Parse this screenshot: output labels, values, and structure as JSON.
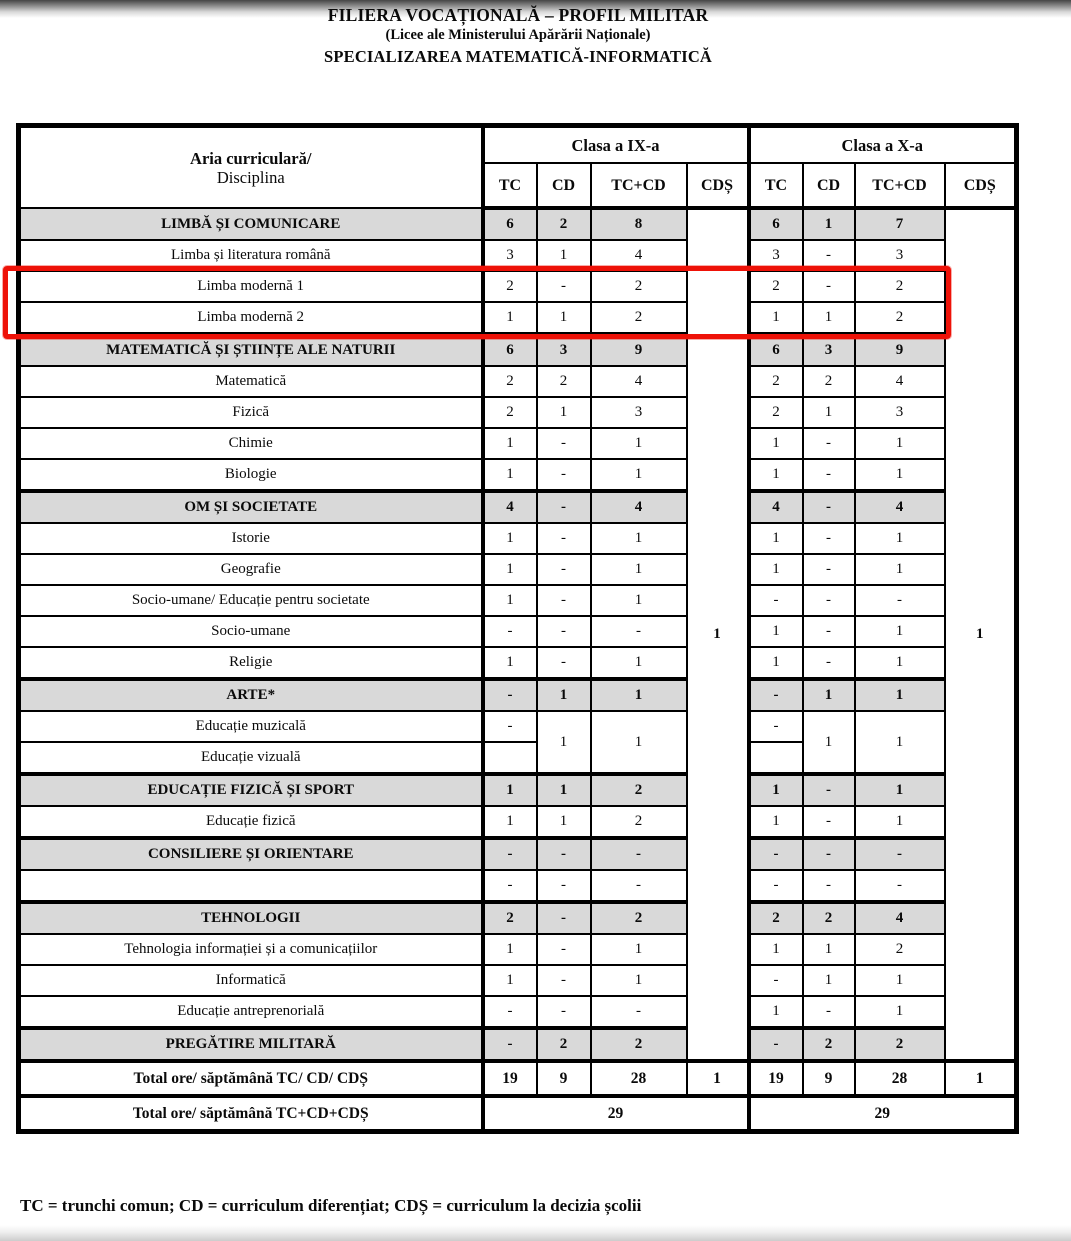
{
  "title": {
    "line1": "FILIERA VOCAȚIONALĂ – PROFIL MILITAR",
    "line2": "(Licee ale Ministerului Apărării Naționale)",
    "line3": "SPECIALIZAREA MATEMATICĂ-INFORMATICĂ"
  },
  "colors": {
    "section_bg": "#d9d9d9",
    "highlight": "#ee1208"
  },
  "table": {
    "corner": {
      "line1": "Aria curriculară/",
      "line2": "Disciplina"
    },
    "class_headers": [
      "Clasa a IX-a",
      "Clasa a X-a"
    ],
    "sub_headers": [
      "TC",
      "CD",
      "TC+CD",
      "CDȘ"
    ],
    "cds": {
      "ix": "1",
      "x": "1"
    },
    "rows": [
      {
        "type": "section",
        "label": "LIMBĂ ȘI COMUNICARE",
        "ix": [
          "6",
          "2",
          "8"
        ],
        "x": [
          "6",
          "1",
          "7"
        ]
      },
      {
        "type": "subject",
        "label": "Limba și literatura română",
        "ix": [
          "3",
          "1",
          "4"
        ],
        "x": [
          "3",
          "-",
          "3"
        ]
      },
      {
        "type": "subject",
        "key": "limba-moderna-1",
        "highlight": true,
        "label": "Limba modernă 1",
        "ix": [
          "2",
          "-",
          "2"
        ],
        "x": [
          "2",
          "-",
          "2"
        ]
      },
      {
        "type": "subject",
        "key": "limba-moderna-2",
        "highlight": true,
        "label": "Limba modernă 2",
        "ix": [
          "1",
          "1",
          "2"
        ],
        "x": [
          "1",
          "1",
          "2"
        ]
      },
      {
        "type": "section",
        "label": "MATEMATICĂ ȘI ȘTIINȚE ALE NATURII",
        "ix": [
          "6",
          "3",
          "9"
        ],
        "x": [
          "6",
          "3",
          "9"
        ]
      },
      {
        "type": "subject",
        "label": "Matematică",
        "ix": [
          "2",
          "2",
          "4"
        ],
        "x": [
          "2",
          "2",
          "4"
        ]
      },
      {
        "type": "subject",
        "label": "Fizică",
        "ix": [
          "2",
          "1",
          "3"
        ],
        "x": [
          "2",
          "1",
          "3"
        ]
      },
      {
        "type": "subject",
        "label": "Chimie",
        "ix": [
          "1",
          "-",
          "1"
        ],
        "x": [
          "1",
          "-",
          "1"
        ]
      },
      {
        "type": "subject",
        "label": "Biologie",
        "ix": [
          "1",
          "-",
          "1"
        ],
        "x": [
          "1",
          "-",
          "1"
        ]
      },
      {
        "type": "section",
        "label": "OM ȘI SOCIETATE",
        "ix": [
          "4",
          "-",
          "4"
        ],
        "x": [
          "4",
          "-",
          "4"
        ]
      },
      {
        "type": "subject",
        "label": "Istorie",
        "ix": [
          "1",
          "-",
          "1"
        ],
        "x": [
          "1",
          "-",
          "1"
        ]
      },
      {
        "type": "subject",
        "label": "Geografie",
        "ix": [
          "1",
          "-",
          "1"
        ],
        "x": [
          "1",
          "-",
          "1"
        ]
      },
      {
        "type": "subject",
        "label": "Socio-umane/ Educație pentru societate",
        "ix": [
          "1",
          "-",
          "1"
        ],
        "x": [
          "-",
          "-",
          "-"
        ]
      },
      {
        "type": "subject",
        "label": "Socio-umane",
        "ix": [
          "-",
          "-",
          "-"
        ],
        "x": [
          "1",
          "-",
          "1"
        ]
      },
      {
        "type": "subject",
        "label": "Religie",
        "ix": [
          "1",
          "-",
          "1"
        ],
        "x": [
          "1",
          "-",
          "1"
        ]
      },
      {
        "type": "section",
        "label": "ARTE*",
        "ix": [
          "-",
          "1",
          "1"
        ],
        "x": [
          "-",
          "1",
          "1"
        ]
      },
      {
        "type": "subject",
        "merge": "top",
        "label": "Educație muzicală",
        "ix": [
          "-",
          "1",
          "1"
        ],
        "x": [
          "-",
          "1",
          "1"
        ]
      },
      {
        "type": "subject",
        "merge": "bottom",
        "label": "Educație vizuală",
        "ix": [
          ""
        ],
        "x": [
          ""
        ]
      },
      {
        "type": "section",
        "label": "EDUCAȚIE FIZICĂ ȘI SPORT",
        "ix": [
          "1",
          "1",
          "2"
        ],
        "x": [
          "1",
          "-",
          "1"
        ]
      },
      {
        "type": "subject",
        "label": "Educație fizică",
        "ix": [
          "1",
          "1",
          "2"
        ],
        "x": [
          "1",
          "-",
          "1"
        ]
      },
      {
        "type": "section",
        "label": "CONSILIERE ȘI ORIENTARE",
        "ix": [
          "-",
          "-",
          "-"
        ],
        "x": [
          "-",
          "-",
          "-"
        ]
      },
      {
        "type": "subject",
        "label": "",
        "ix": [
          "-",
          "-",
          "-"
        ],
        "x": [
          "-",
          "-",
          "-"
        ]
      },
      {
        "type": "section",
        "label": "TEHNOLOGII",
        "ix": [
          "2",
          "-",
          "2"
        ],
        "x": [
          "2",
          "2",
          "4"
        ]
      },
      {
        "type": "subject",
        "label": "Tehnologia informației și a comunicațiilor",
        "ix": [
          "1",
          "-",
          "1"
        ],
        "x": [
          "1",
          "1",
          "2"
        ]
      },
      {
        "type": "subject",
        "label": "Informatică",
        "ix": [
          "1",
          "-",
          "1"
        ],
        "x": [
          "-",
          "1",
          "1"
        ]
      },
      {
        "type": "subject",
        "label": "Educație antreprenorială",
        "ix": [
          "-",
          "-",
          "-"
        ],
        "x": [
          "1",
          "-",
          "1"
        ]
      },
      {
        "type": "section",
        "label": "PREGĂTIRE MILITARĂ",
        "ix": [
          "-",
          "2",
          "2"
        ],
        "x": [
          "-",
          "2",
          "2"
        ]
      }
    ],
    "total_row1": {
      "label": "Total ore/ săptămână TC/ CD/ CDȘ",
      "ix": [
        "19",
        "9",
        "28",
        "1"
      ],
      "x": [
        "19",
        "9",
        "28",
        "1"
      ]
    },
    "total_row2": {
      "label": "Total ore/ săptămână TC+CD+CDȘ",
      "ix": "29",
      "x": "29"
    }
  },
  "legend": {
    "text": "TC = trunchi comun; CD = curriculum diferențiat; CDȘ = curriculum la decizia școlii"
  }
}
